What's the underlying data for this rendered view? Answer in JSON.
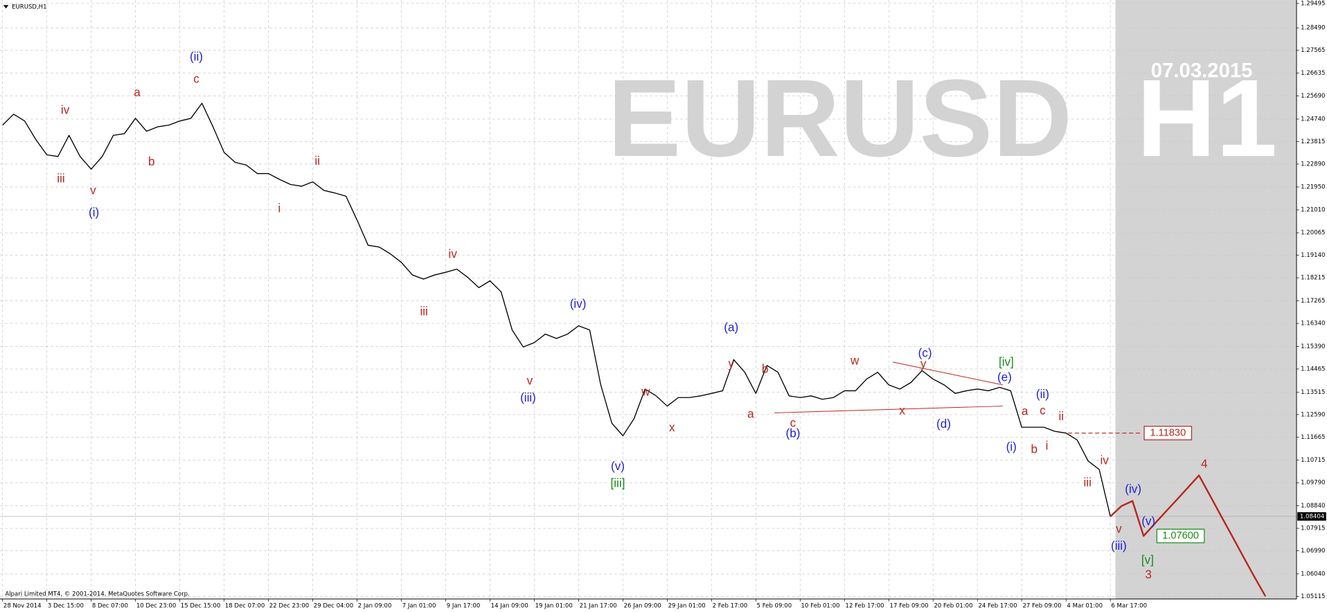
{
  "chart_data": {
    "type": "line",
    "title": "EURUSD,H1",
    "watermark": [
      "EURUSD",
      "H1"
    ],
    "date_stamp": "07.03.2015",
    "copyright": "Alpari Limited MT4, © 2001-2014, MetaQuotes Software Corp.",
    "categories": [
      "28 Nov 2014",
      null,
      null,
      null,
      "3 Dec 15:00",
      null,
      null,
      null,
      "8 Dec 07:00",
      null,
      null,
      null,
      "10 Dec 23:00",
      null,
      null,
      null,
      "15 Dec 15:00",
      null,
      null,
      null,
      "18 Dec 07:00",
      null,
      null,
      null,
      "22 Dec 23:00",
      null,
      null,
      null,
      "29 Dec 04:00",
      null,
      null,
      null,
      "2 Jan 09:00",
      null,
      null,
      null,
      "7 Jan 01:00",
      null,
      null,
      null,
      "9 Jan 17:00",
      null,
      null,
      null,
      "14 Jan 09:00",
      null,
      null,
      null,
      "19 Jan 01:00",
      null,
      null,
      null,
      "21 Jan 17:00",
      null,
      null,
      null,
      "26 Jan 09:00",
      null,
      null,
      null,
      "29 Jan 01:00",
      null,
      null,
      null,
      "2 Feb 17:00",
      null,
      null,
      null,
      "5 Feb 09:00",
      null,
      null,
      null,
      "10 Feb 01:00",
      null,
      null,
      null,
      "12 Feb 17:00",
      null,
      null,
      null,
      "17 Feb 09:00",
      null,
      null,
      null,
      "20 Feb 01:00",
      null,
      null,
      null,
      "24 Feb 17:00",
      null,
      null,
      null,
      "27 Feb 09:00",
      null,
      null,
      null,
      "4 Mar 01:00",
      null,
      null,
      null,
      "6 Mar 17:00",
      null,
      null,
      null,
      null,
      null,
      null,
      null,
      null,
      null,
      null,
      null,
      null,
      null,
      null,
      null
    ],
    "series": [
      {
        "color": "#000000",
        "values": [
          1.2449,
          1.2494,
          1.2466,
          1.239,
          1.2327,
          1.232,
          1.2407,
          1.232,
          1.2268,
          1.232,
          1.2407,
          1.2414,
          1.2477,
          1.2424,
          1.2442,
          1.2449,
          1.2466,
          1.2477,
          1.2539,
          1.2442,
          1.2337,
          1.2296,
          1.2285,
          1.225,
          1.225,
          1.2226,
          1.2205,
          1.2198,
          1.2216,
          1.2181,
          1.217,
          1.2157,
          1.2059,
          1.1955,
          1.1948,
          1.192,
          1.1885,
          1.1833,
          1.1816,
          1.1833,
          1.1844,
          1.1857,
          1.1823,
          1.1781,
          1.1809,
          1.1764,
          1.1607,
          1.1537,
          1.1555,
          1.159,
          1.1572,
          1.159,
          1.1624,
          1.1607,
          1.1381,
          1.1224,
          1.1172,
          1.1242,
          1.1364,
          1.1336,
          1.1294,
          1.1329,
          1.1329,
          1.1336,
          1.1346,
          1.1357,
          1.1485,
          1.1433,
          1.1346,
          1.1461,
          1.1433,
          1.1336,
          1.1329,
          1.1336,
          1.1322,
          1.1329,
          1.1357,
          1.1357,
          1.1405,
          1.1433,
          1.1381,
          1.1364,
          1.1391,
          1.144,
          1.1405,
          1.1381,
          1.1346,
          1.1357,
          1.1364,
          1.1357,
          1.1371,
          1.1357,
          1.1207,
          1.1207,
          1.1207,
          1.119,
          1.1183,
          1.1155,
          1.1068,
          1.1033,
          1.084,
          null,
          null,
          null,
          null,
          null,
          null,
          null,
          null,
          null,
          null,
          null,
          null,
          null,
          null,
          null
        ]
      },
      {
        "color": "#b5281f",
        "values": [
          null,
          null,
          null,
          null,
          null,
          null,
          null,
          null,
          null,
          null,
          null,
          null,
          null,
          null,
          null,
          null,
          null,
          null,
          null,
          null,
          null,
          null,
          null,
          null,
          null,
          null,
          null,
          null,
          null,
          null,
          null,
          null,
          null,
          null,
          null,
          null,
          null,
          null,
          null,
          null,
          null,
          null,
          null,
          null,
          null,
          null,
          null,
          null,
          null,
          null,
          null,
          null,
          null,
          null,
          null,
          null,
          null,
          null,
          null,
          null,
          null,
          null,
          null,
          null,
          null,
          null,
          null,
          null,
          null,
          null,
          null,
          null,
          null,
          null,
          null,
          null,
          null,
          null,
          null,
          null,
          null,
          null,
          null,
          null,
          null,
          null,
          null,
          null,
          null,
          null,
          null,
          null,
          null,
          null,
          null,
          null,
          null,
          null,
          null,
          null,
          1.084,
          1.0883,
          1.0904,
          1.076,
          1.081,
          1.086,
          1.0909,
          1.0959,
          1.1009,
          1.0926,
          1.0842,
          1.0759,
          1.0675,
          1.0592,
          1.0512,
          null
        ]
      }
    ],
    "ylim": [
      1.05115,
      1.29495
    ],
    "yticks": [
      1.29495,
      {
        "value": 1.2849,
        "label": "1.28490"
      },
      1.27565,
      1.26635,
      {
        "value": 1.2569,
        "label": "1.25690"
      },
      {
        "value": 1.2474,
        "label": "1.24740"
      },
      1.23815,
      {
        "value": 1.2289,
        "label": "1.22890"
      },
      {
        "value": 1.2195,
        "label": "1.21950"
      },
      {
        "value": 1.2101,
        "label": "1.21010"
      },
      1.20065,
      {
        "value": 1.1914,
        "label": "1.19140"
      },
      1.18215,
      1.17265,
      {
        "value": 1.1634,
        "label": "1.16340"
      },
      {
        "value": 1.1539,
        "label": "1.15390"
      },
      1.14465,
      1.13515,
      {
        "value": 1.1259,
        "label": "1.12590"
      },
      1.11665,
      1.10715,
      {
        "value": 1.0979,
        "label": "1.09790"
      },
      {
        "value": 1.0884,
        "label": "1.08840"
      },
      1.07915,
      {
        "value": 1.0699,
        "label": "1.06990"
      },
      {
        "value": 1.0604,
        "label": "1.06040"
      },
      1.05115
    ],
    "grid": true,
    "current_price": 1.08404,
    "levels": [
      {
        "value": 1.1183,
        "label": "1.11830",
        "color": "#b5281f",
        "dashed": true
      },
      {
        "value": 1.076,
        "label": "1.07600",
        "color": "#1a8c1a",
        "dashed": false
      }
    ],
    "annotations": [
      {
        "text": "iv",
        "color": "#b5281f"
      },
      {
        "text": "iii",
        "color": "#b5281f"
      },
      {
        "text": "v",
        "color": "#b5281f"
      },
      {
        "text": "(i)",
        "color": "#1f1fd0"
      },
      {
        "text": "a",
        "color": "#b5281f"
      },
      {
        "text": "b",
        "color": "#b5281f"
      },
      {
        "text": "(ii)",
        "color": "#1f1fd0"
      },
      {
        "text": "c",
        "color": "#b5281f"
      },
      {
        "text": "ii",
        "color": "#b5281f"
      },
      {
        "text": "i",
        "color": "#b5281f"
      },
      {
        "text": "iv",
        "color": "#b5281f"
      },
      {
        "text": "iii",
        "color": "#b5281f"
      },
      {
        "text": "v",
        "color": "#b5281f"
      },
      {
        "text": "(iii)",
        "color": "#1f1fd0"
      },
      {
        "text": "(iv)",
        "color": "#1f1fd0"
      },
      {
        "text": "(v)",
        "color": "#1f1fd0"
      },
      {
        "text": "[iii]",
        "color": "#1a8c1a"
      },
      {
        "text": "w",
        "color": "#b5281f"
      },
      {
        "text": "x",
        "color": "#b5281f"
      },
      {
        "text": "(a)",
        "color": "#1f1fd0"
      },
      {
        "text": "y",
        "color": "#b5281f"
      },
      {
        "text": "b",
        "color": "#b5281f"
      },
      {
        "text": "a",
        "color": "#b5281f"
      },
      {
        "text": "c",
        "color": "#b5281f"
      },
      {
        "text": "(b)",
        "color": "#1f1fd0"
      },
      {
        "text": "w",
        "color": "#b5281f"
      },
      {
        "text": "x",
        "color": "#b5281f"
      },
      {
        "text": "(c)",
        "color": "#1f1fd0"
      },
      {
        "text": "y",
        "color": "#b5281f"
      },
      {
        "text": "(d)",
        "color": "#1f1fd0"
      },
      {
        "text": "[iv]",
        "color": "#1a8c1a"
      },
      {
        "text": "(e)",
        "color": "#1f1fd0"
      },
      {
        "text": "(i)",
        "color": "#1f1fd0"
      },
      {
        "text": "a",
        "color": "#b5281f"
      },
      {
        "text": "b",
        "color": "#b5281f"
      },
      {
        "text": "c",
        "color": "#b5281f"
      },
      {
        "text": "(ii)",
        "color": "#1f1fd0"
      },
      {
        "text": "i",
        "color": "#b5281f"
      },
      {
        "text": "ii",
        "color": "#b5281f"
      },
      {
        "text": "iv",
        "color": "#b5281f"
      },
      {
        "text": "iii",
        "color": "#b5281f"
      },
      {
        "text": "(iv)",
        "color": "#1f1fd0"
      },
      {
        "text": "v",
        "color": "#b5281f"
      },
      {
        "text": "(v)",
        "color": "#1f1fd0"
      },
      {
        "text": "(iii)",
        "color": "#1f1fd0"
      },
      {
        "text": "[v]",
        "color": "#1a8c1a"
      },
      {
        "text": "3",
        "color": "#b5281f"
      },
      {
        "text": "4",
        "color": "#b5281f"
      }
    ]
  }
}
